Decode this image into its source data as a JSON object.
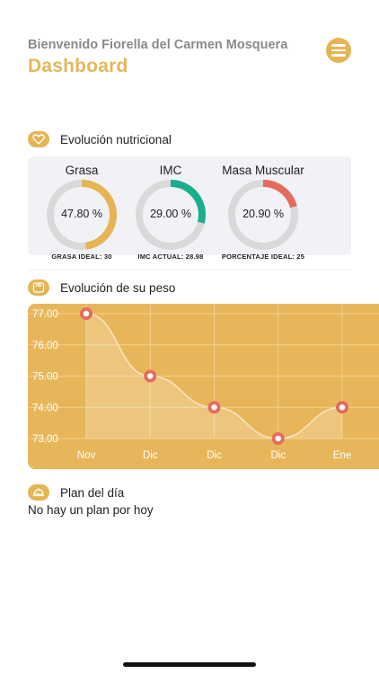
{
  "header": {
    "greeting": "Bienvenido Fiorella del Carmen Mosquera",
    "title": "Dashboard",
    "menu_icon": "hamburger-icon"
  },
  "nutrition": {
    "section_title": "Evolución nutricional",
    "icon": "heart-icon",
    "metrics": [
      {
        "title": "Grasa",
        "value": "47.80 %",
        "caption": "GRASA IDEAL: 30",
        "fraction": 0.478,
        "color": "#e5b553"
      },
      {
        "title": "IMC",
        "value": "29.00 %",
        "caption": "IMC ACTUAL: 28.98",
        "fraction": 0.29,
        "color": "#1aae8e"
      },
      {
        "title": "Masa Muscular",
        "value": "20.90 %",
        "caption": "PORCENTAJE IDEAL: 25",
        "fraction": 0.209,
        "color": "#e46b5f"
      }
    ]
  },
  "weight": {
    "section_title": "Evolución de su peso",
    "icon": "scale-icon"
  },
  "plan": {
    "section_title": "Plan del día",
    "icon": "food-plate-icon",
    "empty_text": "No hay un plan por hoy"
  },
  "colors": {
    "accent": "#e5b553",
    "chart_bg": "#e8b65a",
    "point": "#e46b5f"
  },
  "chart_data": {
    "type": "line",
    "categories": [
      "Nov",
      "Dic",
      "Dic",
      "Dic",
      "Ene"
    ],
    "values": [
      77.0,
      75.0,
      74.0,
      73.0,
      74.0
    ],
    "y_ticks": [
      "77.00",
      "76.00",
      "75.00",
      "74.00",
      "73.00"
    ],
    "ylim": [
      73.0,
      77.0
    ],
    "grid": true,
    "title": "",
    "xlabel": "",
    "ylabel": ""
  }
}
